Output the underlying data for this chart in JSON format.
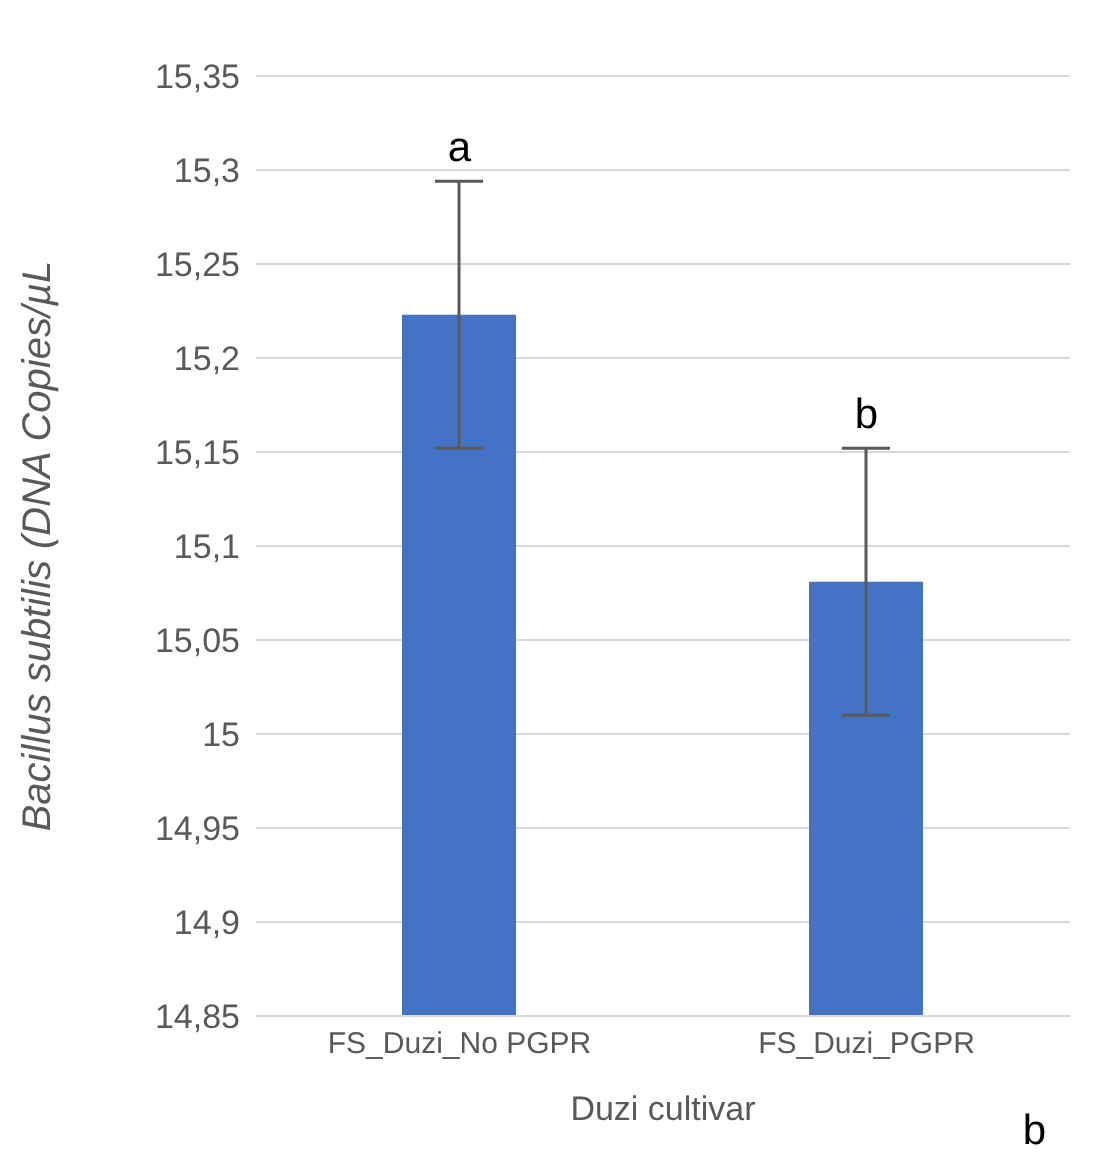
{
  "chart_data": {
    "type": "bar",
    "categories": [
      "FS_Duzi_No PGPR",
      "FS_Duzi_PGPR"
    ],
    "values": [
      15.223,
      15.081
    ],
    "errors": [
      0.071,
      0.071
    ],
    "color": "#4472c4",
    "xlabel": "Duzi cultivar",
    "ylabel": "Bacillus subtilis (DNA Copies/µL",
    "ylim": [
      14.85,
      15.35
    ],
    "yticks": [
      {
        "value": 14.85,
        "label": "14,85"
      },
      {
        "value": 14.9,
        "label": "14,9"
      },
      {
        "value": 14.95,
        "label": "14,95"
      },
      {
        "value": 15,
        "label": "15"
      },
      {
        "value": 15.05,
        "label": "15,05"
      },
      {
        "value": 15.1,
        "label": "15,1"
      },
      {
        "value": 15.15,
        "label": "15,15"
      },
      {
        "value": 15.2,
        "label": "15,2"
      },
      {
        "value": 15.25,
        "label": "15,25"
      },
      {
        "value": 15.3,
        "label": "15,3"
      },
      {
        "value": 15.35,
        "label": "15,35"
      }
    ],
    "grid": "y",
    "annotations": [
      "a",
      "b",
      "b"
    ]
  }
}
